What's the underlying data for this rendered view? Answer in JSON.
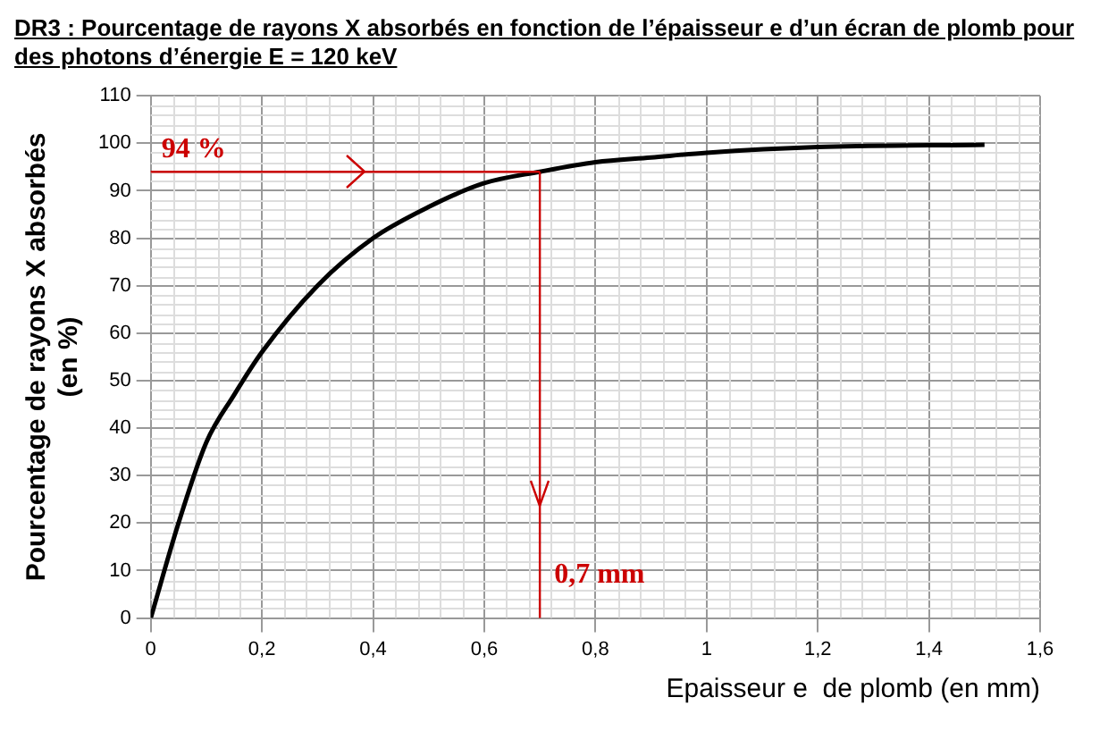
{
  "chart_data": {
    "type": "line",
    "title": "DR3 : Pourcentage de rayons X absorbés en fonction de l’épaisseur e d’un écran de plomb pour des photons d’énergie E = 120 keV",
    "xlabel": "Epaisseur e  de plomb (en mm)",
    "ylabel": "Pourcentage de rayons X absorbés\n(en %)",
    "x": [
      0,
      0.05,
      0.1,
      0.15,
      0.2,
      0.3,
      0.4,
      0.5,
      0.6,
      0.7,
      0.8,
      0.9,
      1.0,
      1.2,
      1.5
    ],
    "series": [
      {
        "color": "#000000",
        "values": [
          0,
          20,
          37,
          47,
          56,
          70,
          80,
          86.6,
          91.6,
          94,
          96,
          97,
          98,
          99.2,
          99.7
        ]
      }
    ],
    "xlim": [
      0,
      1.6
    ],
    "xticks": [
      0,
      {
        "value": 0.2,
        "label": "0,2"
      },
      {
        "value": 0.4,
        "label": "0,4"
      },
      {
        "value": 0.6,
        "label": "0,6"
      },
      {
        "value": 0.8,
        "label": "0,8"
      },
      1,
      {
        "value": 1.2,
        "label": "1,2"
      },
      {
        "value": 1.4,
        "label": "1,4"
      },
      {
        "value": 1.6,
        "label": "1,6"
      }
    ],
    "ylim": [
      0,
      110
    ],
    "yticks": [
      0,
      10,
      20,
      30,
      40,
      50,
      60,
      70,
      80,
      90,
      100,
      110
    ],
    "grid": true,
    "legend": false,
    "marker": "none",
    "line_style": "solid",
    "ref_lines": [
      {
        "axis": "y",
        "value": 94,
        "label": "94 %",
        "color": "#cc0000"
      },
      {
        "axis": "x",
        "value": 0.7,
        "label": "0,7 mm",
        "color": "#cc0000"
      }
    ]
  }
}
